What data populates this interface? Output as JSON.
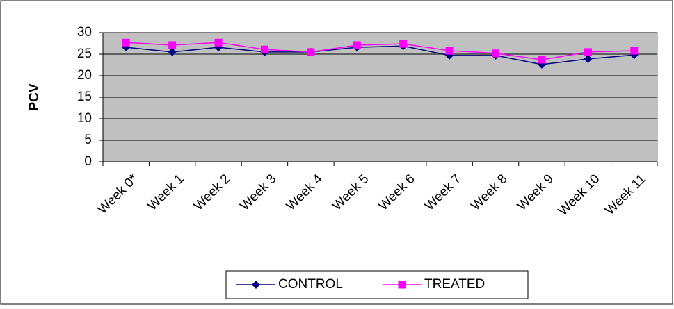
{
  "chart_data": {
    "type": "line",
    "y_label": "PCV",
    "categories": [
      "Week 0*",
      "Week 1",
      "Week 2",
      "Week 3",
      "Week 4",
      "Week 5",
      "Week 6",
      "Week 7",
      "Week 8",
      "Week 9",
      "Week 10",
      "Week 11"
    ],
    "series": [
      {
        "name": "CONTROL",
        "color": "#000080",
        "marker": "diamond",
        "values": [
          26.6,
          25.5,
          26.6,
          25.5,
          25.5,
          26.6,
          26.9,
          24.7,
          24.7,
          22.6,
          23.9,
          24.8
        ]
      },
      {
        "name": "TREATED",
        "color": "#ff00ff",
        "marker": "square",
        "values": [
          27.7,
          27.1,
          27.7,
          26.1,
          25.5,
          27.1,
          27.4,
          25.8,
          25.2,
          23.7,
          25.5,
          25.8
        ]
      }
    ],
    "ylim": [
      0,
      30
    ],
    "yticks": [
      0,
      5,
      10,
      15,
      20,
      25,
      30
    ],
    "grid": true,
    "legend": "bottom"
  }
}
